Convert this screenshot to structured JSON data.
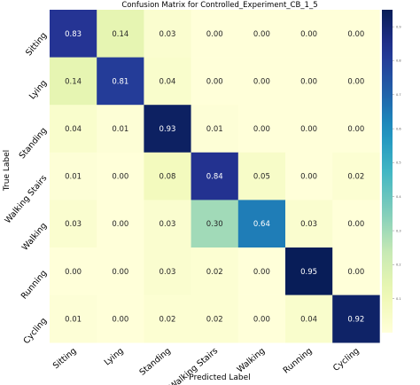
{
  "chart_data": {
    "type": "heatmap",
    "title": "Confusion Matrix for Controlled_Experiment_CB_1_5",
    "xlabel": "Predicted Label",
    "ylabel": "True Label",
    "x_categories": [
      "Sitting",
      "Lying",
      "Standing",
      "Walking Stairs",
      "Walking",
      "Running",
      "Cycling"
    ],
    "y_categories": [
      "Sitting",
      "Lying",
      "Standing",
      "Walking Stairs",
      "Walking",
      "Running",
      "Cycling"
    ],
    "values": [
      [
        0.83,
        0.14,
        0.03,
        0.0,
        0.0,
        0.0,
        0.0
      ],
      [
        0.14,
        0.81,
        0.04,
        0.0,
        0.0,
        0.0,
        0.0
      ],
      [
        0.04,
        0.01,
        0.93,
        0.01,
        0.0,
        0.0,
        0.0
      ],
      [
        0.01,
        0.0,
        0.08,
        0.84,
        0.05,
        0.0,
        0.02
      ],
      [
        0.03,
        0.0,
        0.03,
        0.3,
        0.64,
        0.03,
        0.0
      ],
      [
        0.0,
        0.0,
        0.03,
        0.02,
        0.0,
        0.95,
        0.0
      ],
      [
        0.01,
        0.0,
        0.02,
        0.02,
        0.0,
        0.04,
        0.92
      ]
    ],
    "colormap": "YlGnBu",
    "colorbar": {
      "range": [
        0.0,
        0.95
      ],
      "tick_values": [
        0.1,
        0.2,
        0.3,
        0.4,
        0.5,
        0.6,
        0.7,
        0.8,
        0.9
      ],
      "tick_labels": [
        "0.1",
        "0.2",
        "0.3",
        "0.4",
        "0.5",
        "0.6",
        "0.7",
        "0.8",
        "0.9"
      ]
    },
    "value_format": "2 decimals"
  }
}
